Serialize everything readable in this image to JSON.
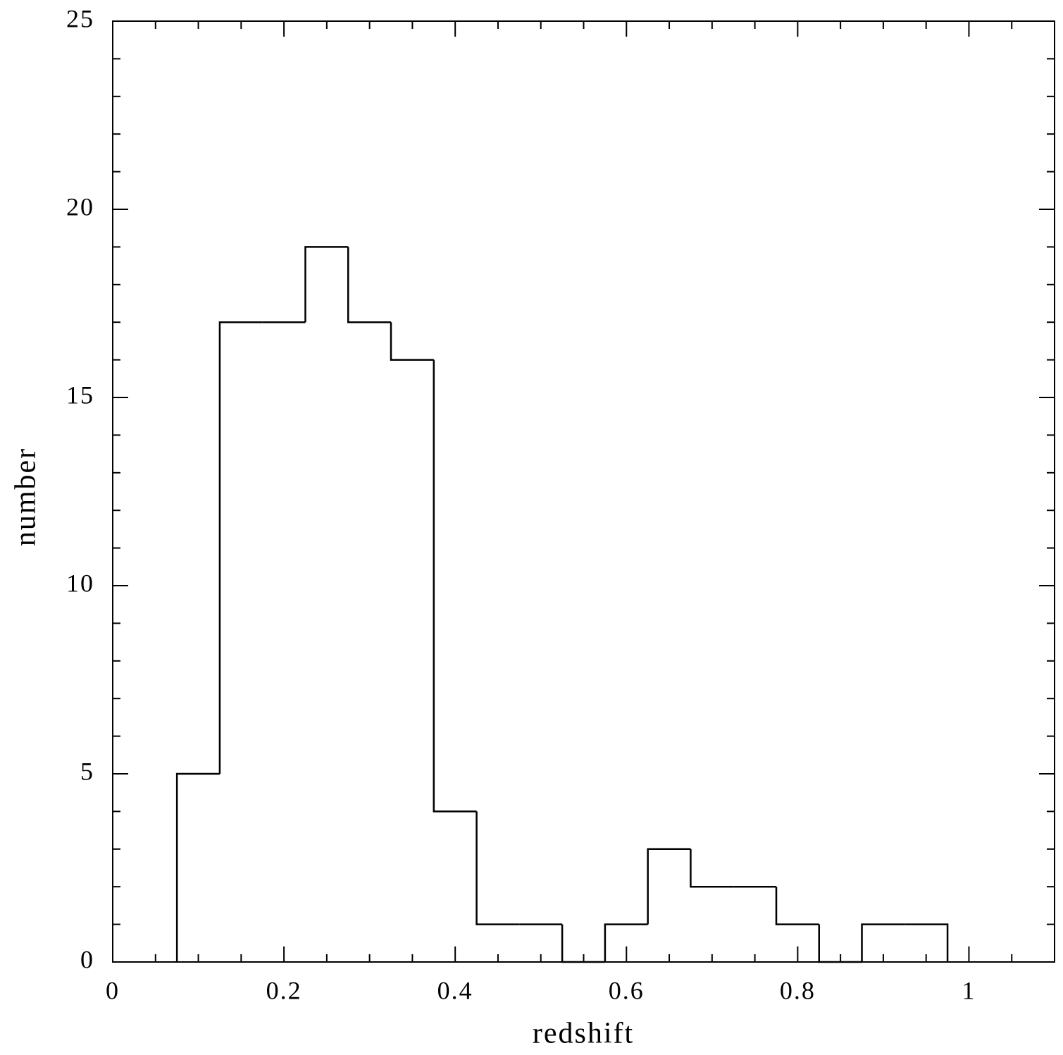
{
  "chart_data": {
    "type": "histogram",
    "x_label": "redshift",
    "y_label": "number",
    "bins": [
      0.075,
      0.125,
      0.175,
      0.225,
      0.275,
      0.325,
      0.375,
      0.425,
      0.475,
      0.525,
      0.575,
      0.625,
      0.675,
      0.725,
      0.775,
      0.825,
      0.875,
      0.925,
      0.975
    ],
    "values": [
      5,
      17,
      17,
      19,
      17,
      16,
      4,
      1,
      1,
      0,
      1,
      3,
      2,
      2,
      1,
      0,
      1,
      1
    ],
    "color": "#000000",
    "xlim": [
      0,
      1.1
    ],
    "ylim": [
      0,
      25
    ],
    "xticks": [
      0,
      0.2,
      0.4,
      0.6,
      0.8,
      1
    ],
    "yticks": [
      0,
      5,
      10,
      15,
      20,
      25
    ],
    "xminorticks": [
      0.05,
      0.1,
      0.15,
      0.25,
      0.3,
      0.35,
      0.45,
      0.5,
      0.55,
      0.65,
      0.7,
      0.75,
      0.85,
      0.9,
      0.95,
      1.05
    ],
    "yminorticks": [
      1,
      2,
      3,
      4,
      6,
      7,
      8,
      9,
      11,
      12,
      13,
      14,
      16,
      17,
      18,
      19,
      21,
      22,
      23,
      24
    ],
    "grid": false
  }
}
